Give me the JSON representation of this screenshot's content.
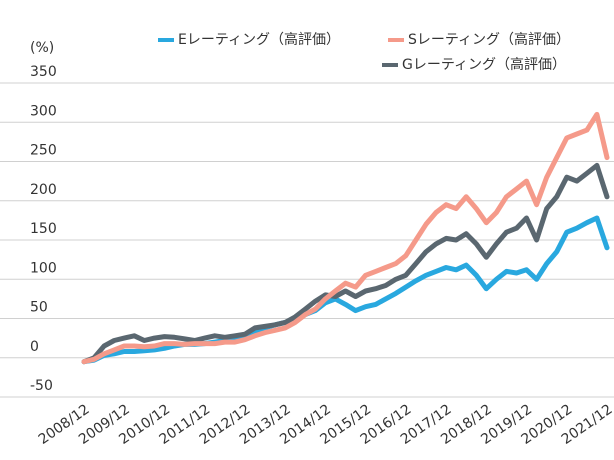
{
  "chart_data": {
    "type": "line",
    "y_label": "(%)",
    "categories": [
      "2008/12",
      null,
      null,
      null,
      "2009/12",
      null,
      null,
      null,
      "2010/12",
      null,
      null,
      null,
      "2011/12",
      null,
      null,
      null,
      "2012/12",
      null,
      null,
      null,
      "2013/12",
      null,
      null,
      null,
      "2014/12",
      null,
      null,
      null,
      "2015/12",
      null,
      null,
      null,
      "2016/12",
      null,
      null,
      null,
      "2017/12",
      null,
      null,
      null,
      "2018/12",
      null,
      null,
      null,
      "2019/12",
      null,
      null,
      null,
      "2020/12",
      null,
      null,
      null,
      "2021/12"
    ],
    "series": [
      {
        "name": "Eレーティング（高評価）",
        "color": "#29a8df",
        "values": [
          -5,
          -3,
          3,
          5,
          8,
          8,
          9,
          10,
          12,
          15,
          17,
          17,
          18,
          20,
          22,
          23,
          25,
          32,
          38,
          42,
          45,
          50,
          55,
          60,
          70,
          75,
          68,
          60,
          65,
          68,
          75,
          82,
          90,
          98,
          105,
          110,
          115,
          112,
          118,
          105,
          88,
          100,
          110,
          108,
          112,
          100,
          120,
          135,
          160,
          165,
          172,
          178,
          140
        ]
      },
      {
        "name": "Sレーティング（高評価）",
        "color": "#f59a8a",
        "values": [
          -5,
          -2,
          5,
          10,
          15,
          15,
          14,
          15,
          18,
          18,
          17,
          18,
          18,
          18,
          20,
          20,
          23,
          28,
          32,
          35,
          38,
          45,
          55,
          62,
          75,
          85,
          95,
          90,
          105,
          110,
          115,
          120,
          130,
          150,
          170,
          185,
          195,
          190,
          205,
          190,
          172,
          185,
          205,
          215,
          225,
          195,
          230,
          255,
          280,
          285,
          290,
          310,
          255
        ]
      },
      {
        "name": "Gレーティング（高評価）",
        "color": "#5a6770",
        "values": [
          -5,
          0,
          15,
          22,
          25,
          28,
          22,
          25,
          27,
          26,
          24,
          22,
          25,
          28,
          26,
          28,
          30,
          38,
          40,
          42,
          45,
          52,
          62,
          72,
          80,
          78,
          85,
          78,
          85,
          88,
          92,
          100,
          105,
          120,
          135,
          145,
          152,
          150,
          158,
          145,
          128,
          145,
          160,
          165,
          178,
          150,
          190,
          205,
          230,
          225,
          235,
          245,
          205
        ]
      }
    ],
    "ylim": [
      -50,
      350
    ],
    "yticks": [
      -50,
      0,
      50,
      100,
      150,
      200,
      250,
      300,
      350
    ],
    "grid": true
  }
}
